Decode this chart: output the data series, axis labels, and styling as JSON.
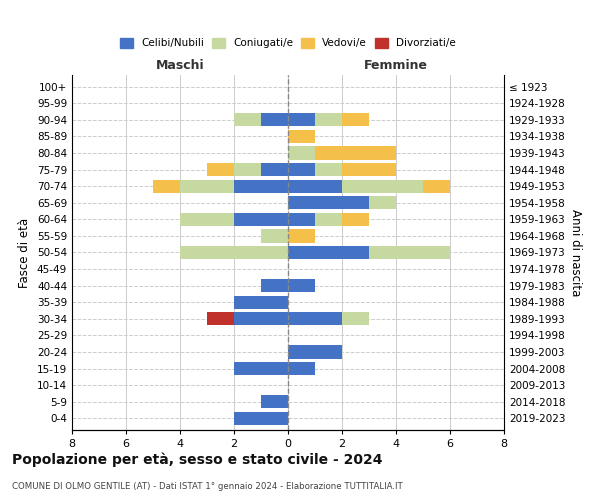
{
  "age_groups": [
    "0-4",
    "5-9",
    "10-14",
    "15-19",
    "20-24",
    "25-29",
    "30-34",
    "35-39",
    "40-44",
    "45-49",
    "50-54",
    "55-59",
    "60-64",
    "65-69",
    "70-74",
    "75-79",
    "80-84",
    "85-89",
    "90-94",
    "95-99",
    "100+"
  ],
  "birth_years": [
    "2019-2023",
    "2014-2018",
    "2009-2013",
    "2004-2008",
    "1999-2003",
    "1994-1998",
    "1989-1993",
    "1984-1988",
    "1979-1983",
    "1974-1978",
    "1969-1973",
    "1964-1968",
    "1959-1963",
    "1954-1958",
    "1949-1953",
    "1944-1948",
    "1939-1943",
    "1934-1938",
    "1929-1933",
    "1924-1928",
    "≤ 1923"
  ],
  "colors": {
    "celibi": "#4472c4",
    "coniugati": "#c5d9a0",
    "vedovi": "#f4c04a",
    "divorziati": "#c0312b"
  },
  "legend_labels": [
    "Celibi/Nubili",
    "Coniugati/e",
    "Vedovi/e",
    "Divorziati/e"
  ],
  "maschi": {
    "celibi": [
      2,
      1,
      0,
      2,
      0,
      0,
      2,
      2,
      1,
      0,
      0,
      0,
      2,
      0,
      2,
      1,
      0,
      0,
      1,
      0,
      0
    ],
    "coniugati": [
      0,
      0,
      0,
      0,
      0,
      0,
      0,
      0,
      0,
      0,
      4,
      1,
      2,
      0,
      2,
      1,
      0,
      0,
      1,
      0,
      0
    ],
    "vedovi": [
      0,
      0,
      0,
      0,
      0,
      0,
      0,
      0,
      0,
      0,
      0,
      0,
      0,
      0,
      1,
      1,
      0,
      0,
      0,
      0,
      0
    ],
    "divorziati": [
      0,
      0,
      0,
      0,
      0,
      0,
      1,
      0,
      0,
      0,
      0,
      0,
      0,
      0,
      0,
      0,
      0,
      0,
      0,
      0,
      0
    ]
  },
  "femmine": {
    "celibi": [
      0,
      0,
      0,
      1,
      2,
      0,
      2,
      0,
      1,
      0,
      3,
      0,
      1,
      3,
      2,
      1,
      0,
      0,
      1,
      0,
      0
    ],
    "coniugati": [
      0,
      0,
      0,
      0,
      0,
      0,
      1,
      0,
      0,
      0,
      3,
      0,
      1,
      1,
      3,
      1,
      1,
      0,
      1,
      0,
      0
    ],
    "vedovi": [
      0,
      0,
      0,
      0,
      0,
      0,
      0,
      0,
      0,
      0,
      0,
      1,
      1,
      0,
      1,
      2,
      3,
      1,
      1,
      0,
      0
    ],
    "divorziati": [
      0,
      0,
      0,
      0,
      0,
      0,
      0,
      0,
      0,
      0,
      0,
      0,
      0,
      0,
      0,
      0,
      0,
      0,
      0,
      0,
      0
    ]
  },
  "xlim": [
    -8,
    8
  ],
  "xticks": [
    -8,
    -6,
    -4,
    -2,
    0,
    2,
    4,
    6,
    8
  ],
  "xticklabels": [
    "8",
    "6",
    "4",
    "2",
    "0",
    "2",
    "4",
    "6",
    "8"
  ],
  "title": "Popolazione per età, sesso e stato civile - 2024",
  "subtitle": "COMUNE DI OLMO GENTILE (AT) - Dati ISTAT 1° gennaio 2024 - Elaborazione TUTTITALIA.IT",
  "ylabel_left": "Fasce di età",
  "ylabel_right": "Anni di nascita",
  "label_maschi": "Maschi",
  "label_femmine": "Femmine",
  "bg_color": "#ffffff",
  "grid_color": "#cccccc",
  "bar_height": 0.8
}
